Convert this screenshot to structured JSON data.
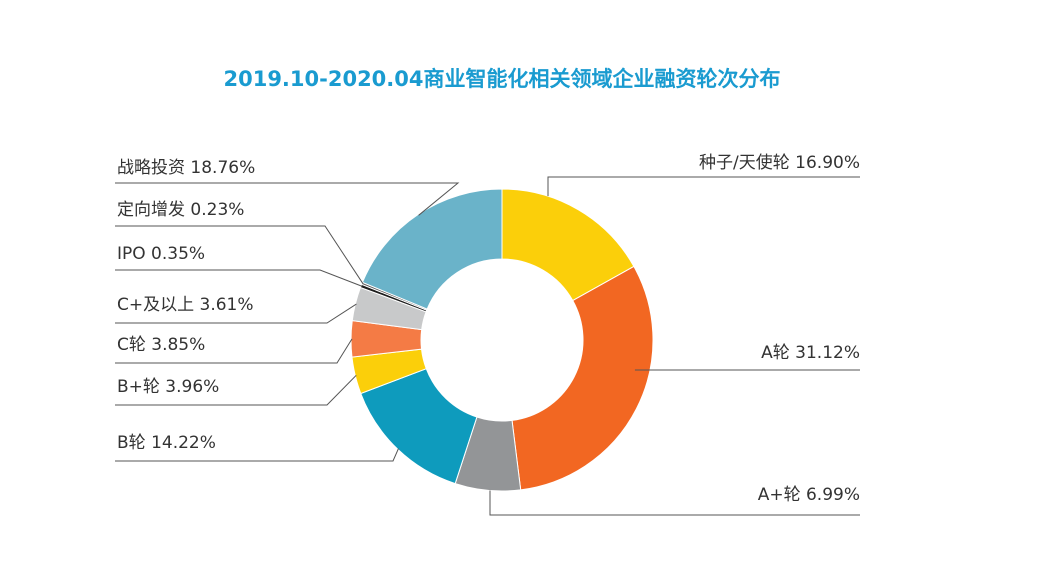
{
  "chart_data": {
    "type": "pie",
    "variant": "donut",
    "title": "2019.10-2020.04商业智能化相关领域企业融资轮次分布",
    "title_color": "#1a9bd0",
    "legend": "none",
    "slices": [
      {
        "label": "种子/天使轮 16.90%",
        "name": "种子/天使轮",
        "value": 16.9,
        "color": "#fbcf0a"
      },
      {
        "label": "A轮 31.12%",
        "name": "A轮",
        "value": 31.12,
        "color": "#f26722"
      },
      {
        "label": "A+轮 6.99%",
        "name": "A+轮",
        "value": 6.99,
        "color": "#939597"
      },
      {
        "label": "B轮 14.22%",
        "name": "B轮",
        "value": 14.22,
        "color": "#0e9bbd"
      },
      {
        "label": "B+轮 3.96%",
        "name": "B+轮",
        "value": 3.96,
        "color": "#fbcf0a"
      },
      {
        "label": "C轮 3.85%",
        "name": "C轮",
        "value": 3.85,
        "color": "#f47b45"
      },
      {
        "label": "C+及以上 3.61%",
        "name": "C+及以上",
        "value": 3.61,
        "color": "#c8c9ca"
      },
      {
        "label": "IPO 0.35%",
        "name": "IPO",
        "value": 0.35,
        "color": "#1d1d1d"
      },
      {
        "label": "定向增发 0.23%",
        "name": "定向增发",
        "value": 0.23,
        "color": "#5d5d5d"
      },
      {
        "label": "战略投资 18.76%",
        "name": "战略投资",
        "value": 18.76,
        "color": "#6ab3c9"
      }
    ]
  }
}
